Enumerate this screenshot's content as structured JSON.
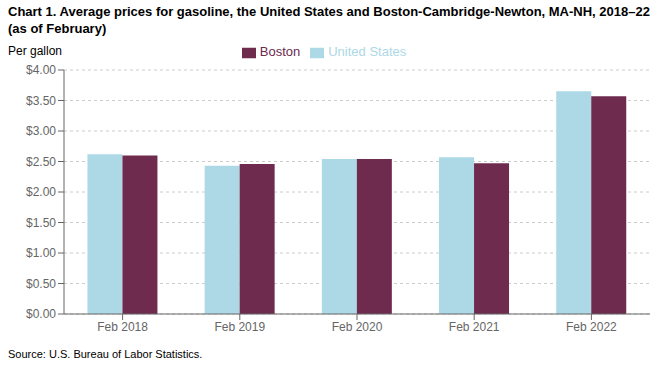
{
  "chart_data": {
    "type": "bar",
    "title": "Chart 1. Average prices for gasoline, the United States and Boston-Cambridge-Newton, MA-NH, 2018–22 (as of February)",
    "ylabel": "Per gallon",
    "source": "Source: U.S. Bureau of Labor Statistics.",
    "categories": [
      "Feb 2018",
      "Feb 2019",
      "Feb 2020",
      "Feb 2021",
      "Feb 2022"
    ],
    "series": [
      {
        "name": "United States",
        "color": "#ADD8E6",
        "values": [
          2.62,
          2.43,
          2.54,
          2.57,
          3.65
        ]
      },
      {
        "name": "Boston",
        "color": "#6E2B4E",
        "values": [
          2.6,
          2.46,
          2.54,
          2.47,
          3.57
        ]
      }
    ],
    "ylim": [
      0.0,
      4.0
    ],
    "yticks": [
      {
        "value": 0.0,
        "label": "$0.00"
      },
      {
        "value": 0.5,
        "label": "$0.50"
      },
      {
        "value": 1.0,
        "label": "$1.00"
      },
      {
        "value": 1.5,
        "label": "$1.50"
      },
      {
        "value": 2.0,
        "label": "$2.00"
      },
      {
        "value": 2.5,
        "label": "$2.50"
      },
      {
        "value": 3.0,
        "label": "$3.00"
      },
      {
        "value": 3.5,
        "label": "$3.50"
      },
      {
        "value": 4.0,
        "label": "$4.00"
      }
    ],
    "grid": true,
    "legend": "top"
  }
}
